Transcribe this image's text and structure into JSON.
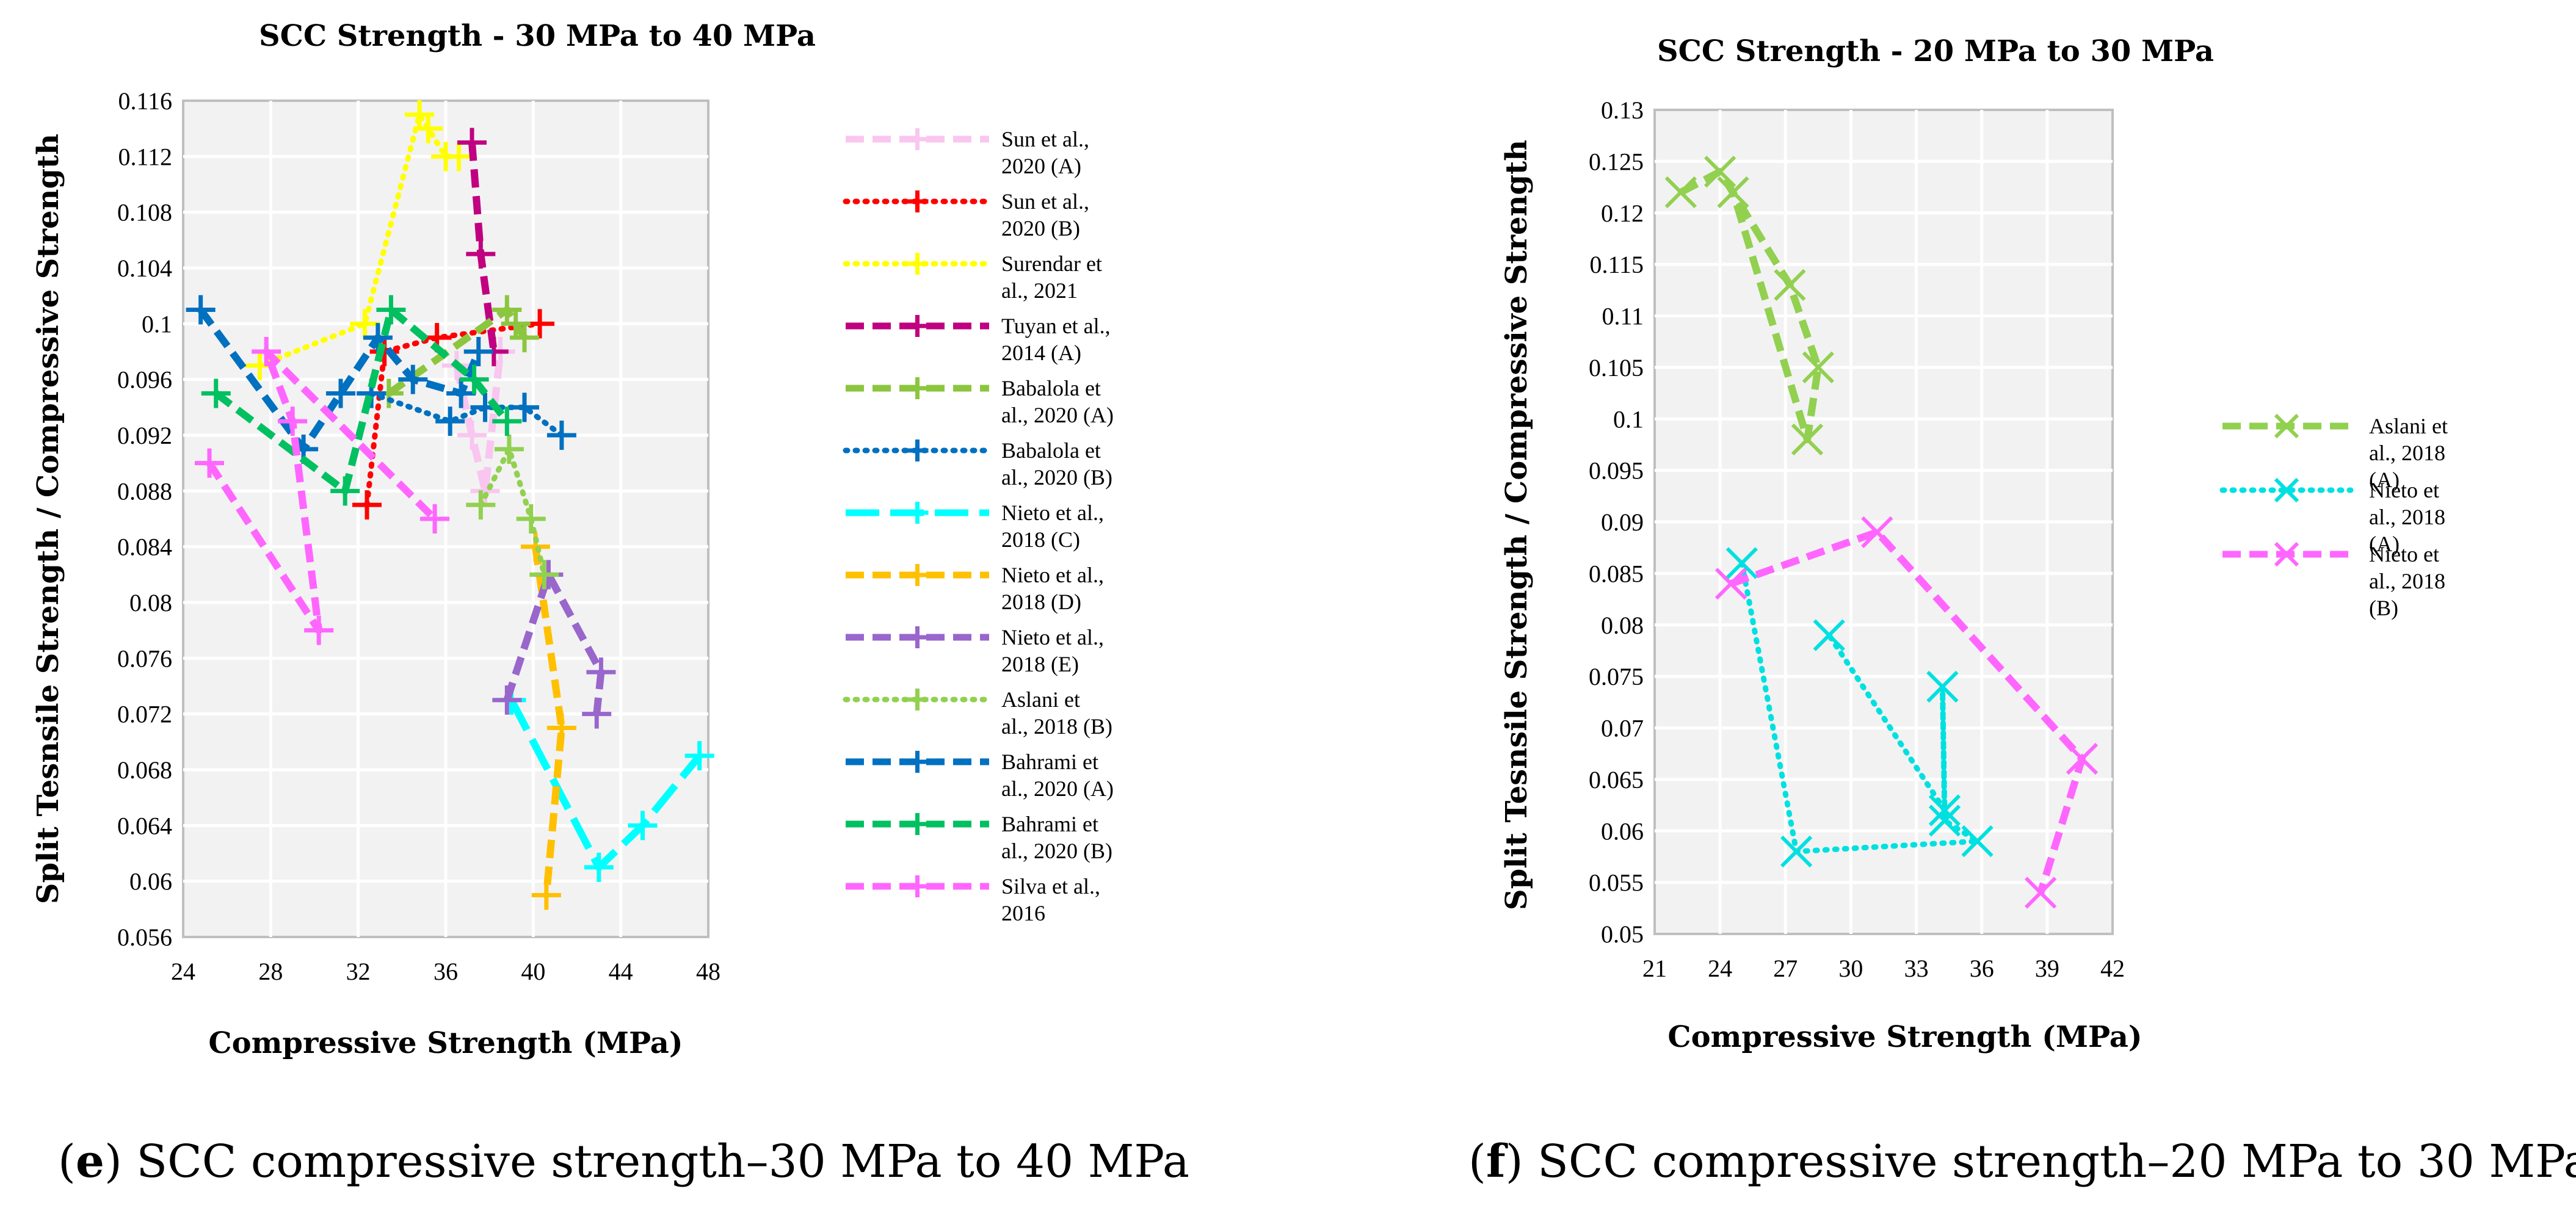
{
  "panels": {
    "e": {
      "caption_letter": "e",
      "caption_text": "SCC compressive strength–30 MPa to 40 MPa"
    },
    "f": {
      "caption_letter": "f",
      "caption_text": "SCC compressive strength–20 MPa to 30 MPa"
    }
  },
  "chart_data": [
    {
      "type": "line",
      "title": "SCC Strength - 30 MPa to 40 MPa",
      "xlabel": "Compressive Strength (MPa)",
      "ylabel": "Split Tesnsile Strength / Compressive Strength",
      "xlim": [
        24,
        48
      ],
      "ylim": [
        0.056,
        0.116
      ],
      "xticks": [
        "24",
        "28",
        "32",
        "36",
        "40",
        "44",
        "48"
      ],
      "yticks": [
        "0.056",
        "0.06",
        "0.064",
        "0.068",
        "0.072",
        "0.076",
        "0.08",
        "0.084",
        "0.088",
        "0.092",
        "0.096",
        "0.1",
        "0.104",
        "0.108",
        "0.112",
        "0.116"
      ],
      "grid": true,
      "legend_position": "right",
      "series": [
        {
          "name": "Sun et al., 2020 (A)",
          "color": "#F9C6F0",
          "dash": "dash",
          "marker": "plus",
          "points": [
            [
              36.5,
              0.097
            ],
            [
              37.2,
              0.092
            ],
            [
              37.8,
              0.088
            ],
            [
              38.5,
              0.098
            ]
          ]
        },
        {
          "name": "Sun et al., 2020 (B)",
          "color": "#FF0000",
          "dash": "dot",
          "marker": "plus",
          "points": [
            [
              32.4,
              0.087
            ],
            [
              33.2,
              0.098
            ],
            [
              35.6,
              0.099
            ],
            [
              40.3,
              0.1
            ]
          ]
        },
        {
          "name": "Surendar et al., 2021",
          "color": "#FFFF00",
          "dash": "dot",
          "marker": "plus",
          "points": [
            [
              27.5,
              0.097
            ],
            [
              32.3,
              0.1
            ],
            [
              34.8,
              0.115
            ],
            [
              35.2,
              0.114
            ],
            [
              36.0,
              0.112
            ],
            [
              36.6,
              0.112
            ]
          ]
        },
        {
          "name": "Tuyan et al., 2014 (A)",
          "color": "#C00080",
          "dash": "dash",
          "marker": "plus",
          "points": [
            [
              37.2,
              0.113
            ],
            [
              37.6,
              0.105
            ],
            [
              38.2,
              0.098
            ]
          ]
        },
        {
          "name": "Babalola et al., 2020 (A)",
          "color": "#8CC63F",
          "dash": "dash",
          "marker": "plus",
          "points": [
            [
              33.4,
              0.095
            ],
            [
              38.8,
              0.101
            ],
            [
              39.2,
              0.1
            ],
            [
              39.6,
              0.099
            ]
          ]
        },
        {
          "name": "Babalola et al., 2020 (B)",
          "color": "#0070C0",
          "dash": "dot",
          "marker": "plus",
          "points": [
            [
              32.6,
              0.095
            ],
            [
              36.2,
              0.093
            ],
            [
              37.8,
              0.094
            ],
            [
              39.6,
              0.094
            ],
            [
              41.3,
              0.092
            ]
          ]
        },
        {
          "name": "Nieto et al., 2018 (C)",
          "color": "#00FFFF",
          "dash": "longdash",
          "marker": "plus",
          "points": [
            [
              39.0,
              0.073
            ],
            [
              43.0,
              0.061
            ],
            [
              45.0,
              0.064
            ],
            [
              47.6,
              0.069
            ]
          ]
        },
        {
          "name": "Nieto et al., 2018 (D)",
          "color": "#FFC000",
          "dash": "dash",
          "marker": "plus",
          "points": [
            [
              40.1,
              0.084
            ],
            [
              41.3,
              0.071
            ],
            [
              40.6,
              0.059
            ]
          ]
        },
        {
          "name": "Nieto et al., 2018 (E)",
          "color": "#9966CC",
          "dash": "dash",
          "marker": "plus",
          "points": [
            [
              38.8,
              0.073
            ],
            [
              40.7,
              0.082
            ],
            [
              43.1,
              0.075
            ],
            [
              42.9,
              0.072
            ]
          ]
        },
        {
          "name": "Aslani et al., 2018 (B)",
          "color": "#92D050",
          "dash": "dot",
          "marker": "plus",
          "points": [
            [
              37.6,
              0.087
            ],
            [
              38.9,
              0.091
            ],
            [
              39.9,
              0.086
            ],
            [
              40.5,
              0.082
            ]
          ]
        },
        {
          "name": "Bahrami et al., 2020 (A)",
          "color": "#0070C0",
          "dash": "dash",
          "marker": "plus",
          "points": [
            [
              24.8,
              0.101
            ],
            [
              29.5,
              0.091
            ],
            [
              31.2,
              0.095
            ],
            [
              32.9,
              0.099
            ],
            [
              34.5,
              0.096
            ],
            [
              36.7,
              0.095
            ],
            [
              37.5,
              0.098
            ]
          ]
        },
        {
          "name": "Bahrami et al., 2020 (B)",
          "color": "#00C060",
          "dash": "dash",
          "marker": "plus",
          "points": [
            [
              25.5,
              0.095
            ],
            [
              31.4,
              0.088
            ],
            [
              33.5,
              0.101
            ],
            [
              37.3,
              0.096
            ],
            [
              38.8,
              0.093
            ]
          ]
        },
        {
          "name": "Silva et al., 2016",
          "color": "#FF66FF",
          "dash": "dash",
          "marker": "plus",
          "points": [
            [
              25.2,
              0.09
            ],
            [
              30.2,
              0.078
            ],
            [
              29.0,
              0.093
            ],
            [
              27.8,
              0.098
            ],
            [
              35.5,
              0.086
            ]
          ]
        }
      ]
    },
    {
      "type": "line",
      "title": "SCC Strength - 20 MPa to 30 MPa",
      "xlabel": "Compressive Strength (MPa)",
      "ylabel": "Split Tesnsile Strength / Compressive Strength",
      "xlim": [
        21,
        42
      ],
      "ylim": [
        0.05,
        0.13
      ],
      "xticks": [
        "21",
        "24",
        "27",
        "30",
        "33",
        "36",
        "39",
        "42"
      ],
      "yticks": [
        "0.05",
        "0.055",
        "0.06",
        "0.065",
        "0.07",
        "0.075",
        "0.08",
        "0.085",
        "0.09",
        "0.095",
        "0.1",
        "0.105",
        "0.11",
        "0.115",
        "0.12",
        "0.125",
        "0.13"
      ],
      "grid": true,
      "legend_position": "right",
      "series": [
        {
          "name": "Aslani et al., 2018 (A)",
          "color": "#92D050",
          "dash": "dash",
          "marker": "x",
          "points": [
            [
              22.2,
              0.122
            ],
            [
              24.0,
              0.124
            ],
            [
              27.2,
              0.113
            ],
            [
              28.5,
              0.105
            ],
            [
              28.0,
              0.098
            ],
            [
              24.6,
              0.122
            ]
          ]
        },
        {
          "name": "Nieto et al., 2018 (A)",
          "color": "#00E0E0",
          "dash": "dot",
          "marker": "x",
          "points": [
            [
              25.0,
              0.086
            ],
            [
              27.5,
              0.058
            ],
            [
              35.8,
              0.059
            ],
            [
              34.3,
              0.061
            ],
            [
              34.2,
              0.074
            ],
            [
              34.3,
              0.062
            ],
            [
              29.0,
              0.079
            ]
          ]
        },
        {
          "name": "Nieto et al., 2018 (B)",
          "color": "#FF66FF",
          "dash": "dash",
          "marker": "x",
          "points": [
            [
              24.5,
              0.084
            ],
            [
              31.2,
              0.089
            ],
            [
              40.6,
              0.067
            ],
            [
              38.7,
              0.054
            ]
          ]
        }
      ]
    }
  ]
}
